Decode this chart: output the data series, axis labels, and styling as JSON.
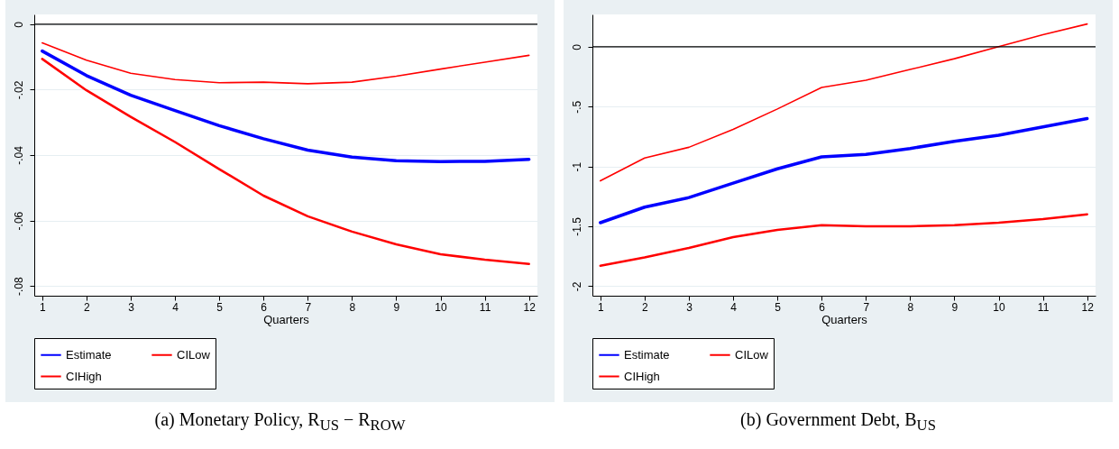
{
  "chart_data": [
    {
      "type": "line",
      "title": "(a) Monetary Policy, R$_{US}$ − R$_{ROW}$",
      "xlabel": "Quarters",
      "x": [
        1,
        2,
        3,
        4,
        5,
        6,
        7,
        8,
        9,
        10,
        11,
        12
      ],
      "xlim": [
        0.82,
        12.19
      ],
      "xticks": [
        1,
        2,
        3,
        4,
        5,
        6,
        7,
        8,
        9,
        10,
        11,
        12
      ],
      "ylim": [
        -0.083,
        0.003
      ],
      "yticks": [
        {
          "value": 0,
          "label": "0"
        },
        {
          "value": -0.02,
          "label": "-.02"
        },
        {
          "value": -0.04,
          "label": "-.04"
        },
        {
          "value": -0.06,
          "label": "-.06"
        },
        {
          "value": -0.08,
          "label": "-.08"
        }
      ],
      "grid": "y",
      "legend": "bottom",
      "ref_lines": [
        {
          "axis": "y",
          "value": 0,
          "color": "#000000"
        }
      ],
      "series": [
        {
          "name": "Estimate",
          "color": "#0000ff",
          "values": [
            -0.0082,
            -0.0157,
            -0.0217,
            -0.0264,
            -0.031,
            -0.035,
            -0.0385,
            -0.0406,
            -0.0417,
            -0.042,
            -0.0419,
            -0.0413
          ]
        },
        {
          "name": "CILow",
          "color": "#ff0000",
          "values": [
            -0.0106,
            -0.0202,
            -0.0283,
            -0.036,
            -0.0443,
            -0.0524,
            -0.0587,
            -0.0634,
            -0.0673,
            -0.0703,
            -0.072,
            -0.0733
          ]
        },
        {
          "name": "CIHigh",
          "color": "#ff0000",
          "values": [
            -0.0057,
            -0.011,
            -0.015,
            -0.0169,
            -0.0179,
            -0.0177,
            -0.0182,
            -0.0177,
            -0.0159,
            -0.0137,
            -0.0116,
            -0.0095
          ]
        }
      ]
    },
    {
      "type": "line",
      "title": "(b) Government Debt, B$_{US}$",
      "xlabel": "Quarters",
      "x": [
        1,
        2,
        3,
        4,
        5,
        6,
        7,
        8,
        9,
        10,
        11,
        12
      ],
      "xlim": [
        0.82,
        12.19
      ],
      "xticks": [
        1,
        2,
        3,
        4,
        5,
        6,
        7,
        8,
        9,
        10,
        11,
        12
      ],
      "ylim": [
        -2.08,
        0.27
      ],
      "yticks": [
        {
          "value": 0,
          "label": "0"
        },
        {
          "value": -0.5,
          "label": "-.5"
        },
        {
          "value": -1,
          "label": "-1"
        },
        {
          "value": -1.5,
          "label": "-1.5"
        },
        {
          "value": -2,
          "label": "-2"
        }
      ],
      "grid": "y",
      "legend": "bottom",
      "ref_lines": [
        {
          "axis": "y",
          "value": 0,
          "color": "#000000"
        }
      ],
      "series": [
        {
          "name": "Estimate",
          "color": "#0000ff",
          "values": [
            -1.47,
            -1.34,
            -1.26,
            -1.14,
            -1.02,
            -0.92,
            -0.9,
            -0.85,
            -0.79,
            -0.74,
            -0.67,
            -0.6
          ]
        },
        {
          "name": "CILow",
          "color": "#ff0000",
          "values": [
            -1.83,
            -1.76,
            -1.68,
            -1.59,
            -1.53,
            -1.49,
            -1.5,
            -1.5,
            -1.49,
            -1.47,
            -1.44,
            -1.4
          ]
        },
        {
          "name": "CIHigh",
          "color": "#ff0000",
          "values": [
            -1.12,
            -0.93,
            -0.84,
            -0.69,
            -0.52,
            -0.34,
            -0.28,
            -0.19,
            -0.1,
            0,
            0.1,
            0.19
          ]
        }
      ]
    }
  ]
}
